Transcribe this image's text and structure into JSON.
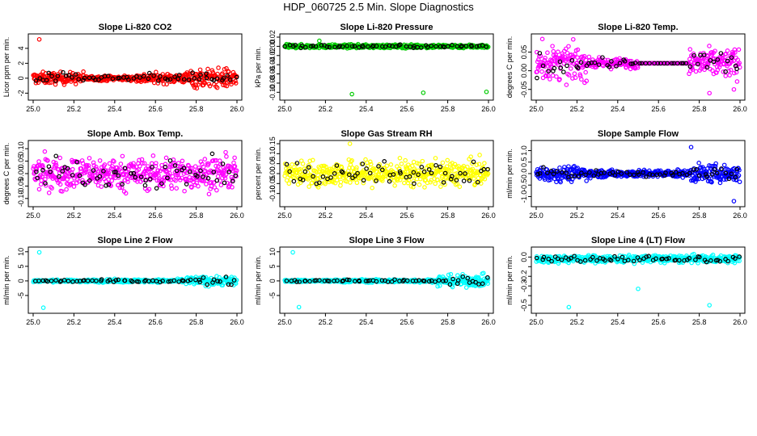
{
  "page_title": "HDP_060725  2.5 Min. Slope Diagnostics",
  "chart_data": [
    {
      "type": "scatter",
      "title": "Slope Li-820 CO2",
      "ylabel": "Licor ppm per min.",
      "xlim": [
        25.0,
        26.0
      ],
      "ylim": [
        -2.5,
        5.5
      ],
      "xticks": [
        25.0,
        25.2,
        25.4,
        25.6,
        25.8,
        26.0
      ],
      "yticks": [
        -2,
        0,
        2,
        4
      ],
      "ytick_labels": [
        "-2",
        "0",
        "2",
        "4"
      ],
      "color": "#ff0000",
      "center": 0,
      "noise": [
        0.6,
        0.25,
        0.5,
        1.0
      ],
      "outliers": [
        [
          25.03,
          5.2
        ]
      ]
    },
    {
      "type": "scatter",
      "title": "Slope Li-820 Pressure",
      "ylabel": "kPa per min.",
      "xlim": [
        25.0,
        26.0
      ],
      "ylim": [
        -0.11,
        0.02
      ],
      "xticks": [
        25.0,
        25.2,
        25.4,
        25.6,
        25.8,
        26.0
      ],
      "yticks": [
        -0.1,
        -0.08,
        -0.06,
        -0.04,
        -0.02,
        0.0,
        0.02
      ],
      "ytick_labels": [
        "-0.10",
        "-0.08",
        "-0.06",
        "-0.04",
        "-0.02",
        "0.00",
        "0.02"
      ],
      "color": "#00cc00",
      "center": 0.0,
      "noise": [
        0.003,
        0.003,
        0.003,
        0.003
      ],
      "outliers": [
        [
          25.33,
          -0.104
        ],
        [
          25.68,
          -0.101
        ],
        [
          25.99,
          -0.099
        ],
        [
          25.17,
          0.012
        ]
      ]
    },
    {
      "type": "scatter",
      "title": "Slope Li-820 Temp.",
      "ylabel": "degrees C per min.",
      "xlim": [
        25.0,
        26.0
      ],
      "ylim": [
        -0.07,
        0.09
      ],
      "xticks": [
        25.0,
        25.2,
        25.4,
        25.6,
        25.8,
        26.0
      ],
      "yticks": [
        -0.05,
        0.0,
        0.05
      ],
      "ytick_labels": [
        "-0.05",
        "0.00",
        "0.05"
      ],
      "color": "#ff00ff",
      "center": 0.02,
      "noise": [
        0.035,
        0.01,
        0.0,
        0.03
      ],
      "outliers": [
        [
          25.03,
          0.085
        ],
        [
          25.85,
          -0.06
        ],
        [
          25.97,
          -0.05
        ]
      ]
    },
    {
      "type": "scatter",
      "title": "Slope Amb. Box Temp.",
      "ylabel": "degrees C per min.",
      "xlim": [
        25.0,
        26.0
      ],
      "ylim": [
        -0.12,
        0.12
      ],
      "xticks": [
        25.0,
        25.2,
        25.4,
        25.6,
        25.8,
        26.0
      ],
      "yticks": [
        -0.1,
        -0.05,
        0.0,
        0.05,
        0.1
      ],
      "ytick_labels": [
        "-0.10",
        "-0.05",
        "0.00",
        "0.05",
        "0.10"
      ],
      "color": "#ff00ff",
      "center": 0,
      "noise": [
        0.05,
        0.05,
        0.05,
        0.05
      ],
      "outliers": []
    },
    {
      "type": "scatter",
      "title": "Slope Gas Stream RH",
      "ylabel": "percent per min.",
      "xlim": [
        25.0,
        26.0
      ],
      "ylim": [
        -0.15,
        0.15
      ],
      "xticks": [
        25.0,
        25.2,
        25.4,
        25.6,
        25.8,
        26.0
      ],
      "yticks": [
        -0.1,
        -0.05,
        0.0,
        0.05,
        0.1,
        0.15
      ],
      "ytick_labels": [
        "-0.10",
        "-0.05",
        "0.00",
        "0.05",
        "0.10",
        "0.15"
      ],
      "color": "#ffff00",
      "center": 0,
      "noise": [
        0.05,
        0.05,
        0.05,
        0.05
      ],
      "outliers": [
        [
          25.32,
          0.15
        ]
      ]
    },
    {
      "type": "scatter",
      "title": "Slope Sample Flow",
      "ylabel": "ml/min per min.",
      "xlim": [
        25.0,
        26.0
      ],
      "ylim": [
        -1.3,
        1.3
      ],
      "xticks": [
        25.0,
        25.2,
        25.4,
        25.6,
        25.8,
        26.0
      ],
      "yticks": [
        -1.0,
        -0.5,
        0.0,
        0.5,
        1.0
      ],
      "ytick_labels": [
        "-1.0",
        "-0.5",
        "0.0",
        "0.5",
        "1.0"
      ],
      "color": "#0000ff",
      "center": 0,
      "noise": [
        0.25,
        0.12,
        0.12,
        0.3
      ],
      "outliers": [
        [
          25.76,
          1.15
        ],
        [
          25.97,
          -1.2
        ]
      ]
    },
    {
      "type": "scatter",
      "title": "Slope Line 2 Flow",
      "ylabel": "ml/min per min.",
      "xlim": [
        25.0,
        26.0
      ],
      "ylim": [
        -10,
        10.5
      ],
      "xticks": [
        25.0,
        25.2,
        25.4,
        25.6,
        25.8,
        26.0
      ],
      "yticks": [
        -5,
        0,
        5,
        10
      ],
      "ytick_labels": [
        "-5",
        "0",
        "5",
        "10"
      ],
      "color": "#00ffff",
      "center": 0,
      "noise": [
        0.3,
        0.4,
        0.4,
        1.2
      ],
      "outliers": [
        [
          25.03,
          9.8
        ],
        [
          25.05,
          -9.2
        ]
      ]
    },
    {
      "type": "scatter",
      "title": "Slope Line 3 Flow",
      "ylabel": "ml/min per min.",
      "xlim": [
        25.0,
        26.0
      ],
      "ylim": [
        -10,
        10.5
      ],
      "xticks": [
        25.0,
        25.2,
        25.4,
        25.6,
        25.8,
        26.0
      ],
      "yticks": [
        -5,
        0,
        5,
        10
      ],
      "ytick_labels": [
        "-5",
        "0",
        "5",
        "10"
      ],
      "color": "#00ffff",
      "center": 0,
      "noise": [
        0.3,
        0.4,
        0.4,
        1.5
      ],
      "outliers": [
        [
          25.04,
          9.8
        ],
        [
          25.07,
          -9.0
        ]
      ]
    },
    {
      "type": "scatter",
      "title": "Slope Line 4 (LT) Flow",
      "ylabel": "ml/min per min.",
      "xlim": [
        25.0,
        26.0
      ],
      "ylim": [
        -0.55,
        0.07
      ],
      "xticks": [
        25.0,
        25.2,
        25.4,
        25.6,
        25.8,
        26.0
      ],
      "yticks": [
        -0.5,
        -0.4,
        -0.3,
        -0.2,
        -0.1,
        0.0
      ],
      "ytick_labels": [
        "-0.5",
        "",
        "-0.3",
        "-0.2",
        "",
        "0.0"
      ],
      "color": "#00ffff",
      "center": -0.02,
      "noise": [
        0.03,
        0.03,
        0.03,
        0.03
      ],
      "outliers": [
        [
          25.16,
          -0.52
        ],
        [
          25.5,
          -0.33
        ],
        [
          25.85,
          -0.5
        ]
      ]
    }
  ]
}
